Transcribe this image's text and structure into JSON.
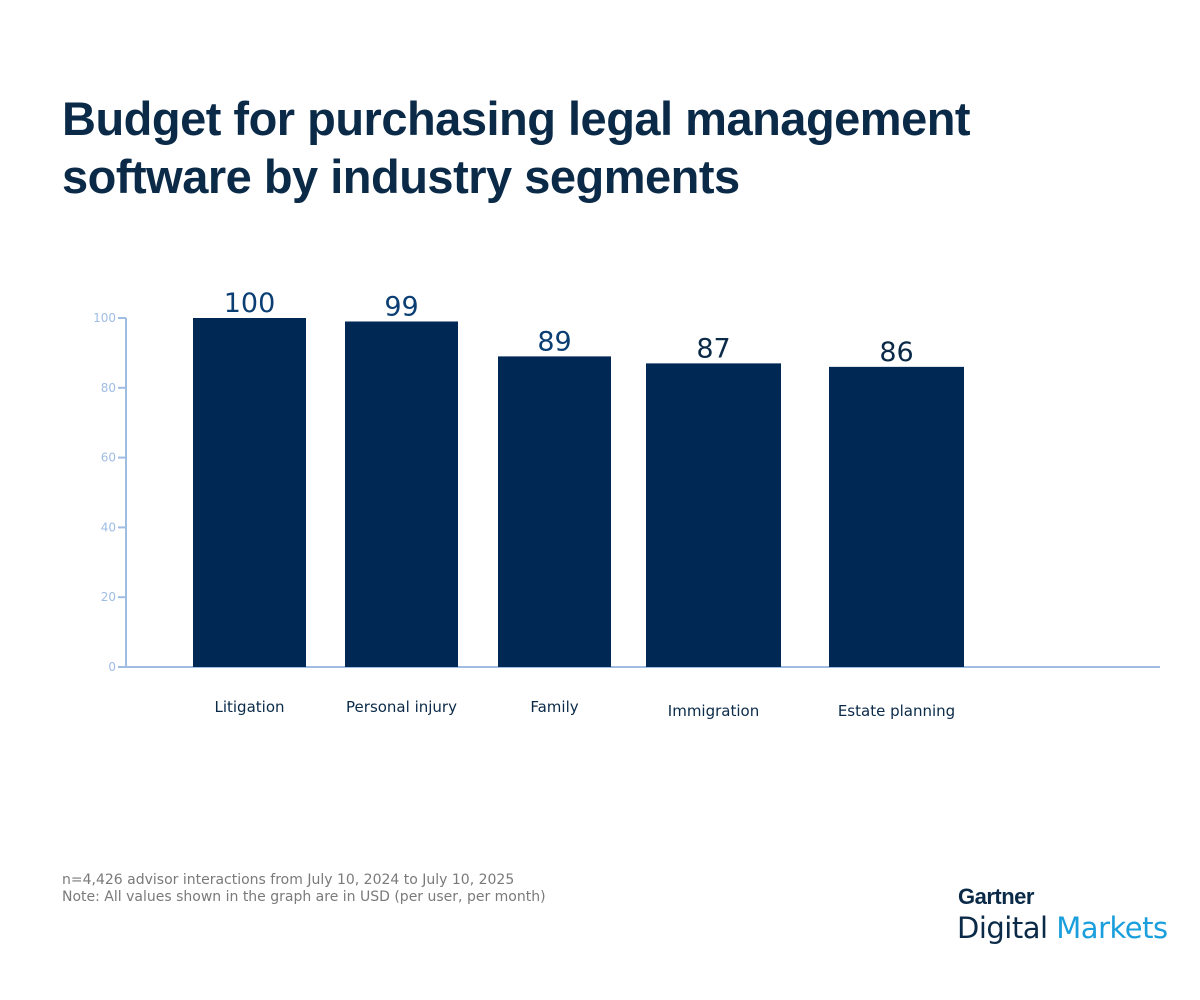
{
  "chart_data": {
    "type": "bar",
    "title": "Budget for purchasing legal management software by industry segments",
    "categories": [
      "Litigation",
      "Personal injury",
      "Family",
      "Immigration",
      "Estate planning"
    ],
    "values": [
      100,
      99,
      89,
      87,
      86
    ],
    "xlabel": "",
    "ylabel": "",
    "ylim": [
      0,
      100
    ],
    "yticks": [
      0,
      20,
      40,
      60,
      80,
      100
    ],
    "grid": false,
    "colors": {
      "bar": "#002855",
      "axis": "#9fbde3",
      "label": "#0b3f73"
    }
  },
  "footnotes": [
    "n=4,426 advisor interactions from July 10, 2024 to July 10, 2025",
    "Note: All values shown in the graph are in USD (per user, per month)"
  ],
  "logo": {
    "line1": "Gartner",
    "line2a": "Digital",
    "line2b": "Markets"
  }
}
